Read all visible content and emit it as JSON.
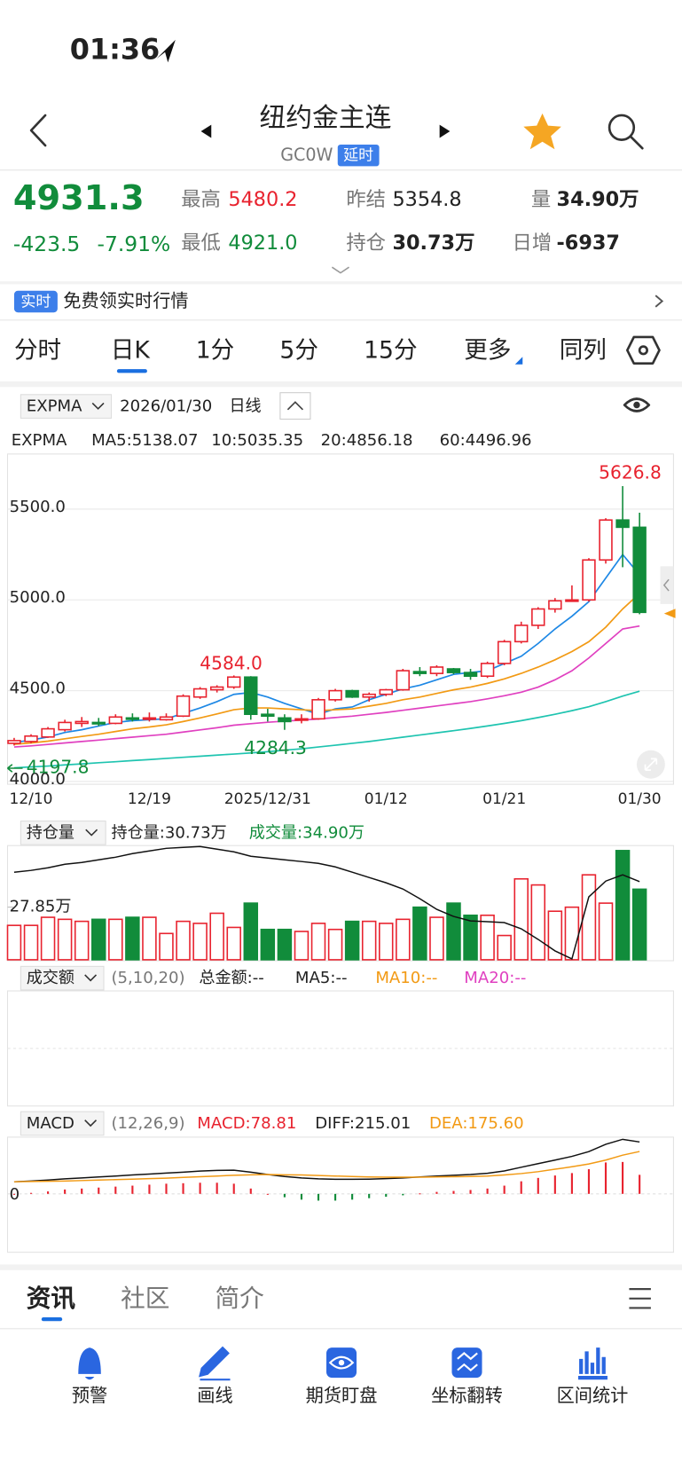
{
  "status": {
    "time": "01:36"
  },
  "header": {
    "title": "纽约金主连",
    "code": "GC0W",
    "badge": "延时"
  },
  "quote": {
    "price": "4931.3",
    "change": "-423.5",
    "change_pct": "-7.91%",
    "high_label": "最高",
    "high": "5480.2",
    "low_label": "最低",
    "low": "4921.0",
    "prev_label": "昨结",
    "prev": "5354.8",
    "oi_label": "持仓",
    "oi": "30.73万",
    "vol_label": "量",
    "vol": "34.90万",
    "inc_label": "日增",
    "inc": "-6937"
  },
  "banner": {
    "badge": "实时",
    "text": "免费领实时行情"
  },
  "tabs": [
    "分时",
    "日K",
    "1分",
    "5分",
    "15分",
    "更多",
    "同列"
  ],
  "toolbar": {
    "indicator": "EXPMA",
    "date": "2026/01/30",
    "period": "日线"
  },
  "legend": {
    "name": "EXPMA",
    "items": [
      {
        "text": "MA5:5138.07",
        "color": "#1e88e5"
      },
      {
        "text": "10:5035.35",
        "color": "#f29a14"
      },
      {
        "text": "20:4856.18",
        "color": "#e040c0"
      },
      {
        "text": "60:4496.96",
        "color": "#1fc4b0"
      }
    ]
  },
  "kline": {
    "up_color": "#e8232f",
    "down_color": "#118c3b",
    "ylim": [
      3995,
      5793
    ],
    "yticks": [
      {
        "value": 4000,
        "label": "4000.0"
      },
      {
        "value": 4500,
        "label": "4500.0"
      },
      {
        "value": 5000,
        "label": "5000.0"
      },
      {
        "value": 5500,
        "label": "5500.0"
      }
    ],
    "categories": [
      null,
      "12/10",
      null,
      null,
      null,
      null,
      null,
      null,
      "12/19",
      null,
      null,
      null,
      null,
      null,
      null,
      "2025/12/31",
      null,
      null,
      null,
      null,
      null,
      null,
      "01/12",
      null,
      null,
      null,
      null,
      null,
      null,
      "01/21",
      null,
      null,
      null,
      null,
      null,
      null,
      null,
      "01/30"
    ],
    "candles": [
      [
        4210,
        4240,
        4197.8,
        4225
      ],
      [
        4220,
        4260,
        4210,
        4250
      ],
      [
        4245,
        4300,
        4240,
        4290
      ],
      [
        4285,
        4340,
        4275,
        4325
      ],
      [
        4320,
        4355,
        4300,
        4330
      ],
      [
        4325,
        4350,
        4305,
        4320
      ],
      [
        4320,
        4370,
        4315,
        4355
      ],
      [
        4350,
        4375,
        4330,
        4345
      ],
      [
        4345,
        4380,
        4330,
        4350
      ],
      [
        4340,
        4375,
        4335,
        4355
      ],
      [
        4360,
        4480,
        4355,
        4470
      ],
      [
        4465,
        4520,
        4455,
        4510
      ],
      [
        4505,
        4530,
        4490,
        4520
      ],
      [
        4520,
        4584,
        4510,
        4575
      ],
      [
        4575,
        4580,
        4340,
        4370
      ],
      [
        4370,
        4400,
        4330,
        4360
      ],
      [
        4350,
        4370,
        4284.3,
        4330
      ],
      [
        4340,
        4370,
        4320,
        4345
      ],
      [
        4345,
        4460,
        4340,
        4450
      ],
      [
        4450,
        4510,
        4440,
        4500
      ],
      [
        4500,
        4505,
        4460,
        4465
      ],
      [
        4465,
        4490,
        4440,
        4480
      ],
      [
        4480,
        4510,
        4470,
        4505
      ],
      [
        4505,
        4620,
        4500,
        4610
      ],
      [
        4605,
        4630,
        4580,
        4595
      ],
      [
        4595,
        4640,
        4580,
        4630
      ],
      [
        4620,
        4625,
        4590,
        4600
      ],
      [
        4600,
        4620,
        4560,
        4580
      ],
      [
        4580,
        4660,
        4570,
        4650
      ],
      [
        4650,
        4780,
        4640,
        4770
      ],
      [
        4770,
        4880,
        4760,
        4860
      ],
      [
        4860,
        4960,
        4840,
        4950
      ],
      [
        4950,
        5010,
        4930,
        4995
      ],
      [
        5000,
        5080,
        4990,
        5000
      ],
      [
        5000,
        5230,
        4990,
        5220
      ],
      [
        5220,
        5450,
        5200,
        5440
      ],
      [
        5440,
        5626.8,
        5180,
        5400
      ],
      [
        5400,
        5480.2,
        4921,
        4931.3
      ]
    ],
    "lines": [
      {
        "color": "#1e88e5",
        "values": [
          4215,
          4228,
          4245,
          4270,
          4285,
          4305,
          4325,
          4335,
          4340,
          4345,
          4375,
          4405,
          4440,
          4480,
          4490,
          4465,
          4430,
          4400,
          4370,
          4400,
          4410,
          4450,
          4480,
          4510,
          4530,
          4560,
          4590,
          4600,
          4610,
          4650,
          4690,
          4760,
          4840,
          4910,
          4990,
          5120,
          5250,
          5138.07
        ]
      },
      {
        "color": "#f29a14",
        "values": [
          4205,
          4212,
          4222,
          4235,
          4248,
          4260,
          4275,
          4290,
          4300,
          4312,
          4330,
          4350,
          4372,
          4395,
          4405,
          4405,
          4400,
          4395,
          4390,
          4395,
          4400,
          4415,
          4430,
          4450,
          4465,
          4485,
          4505,
          4520,
          4540,
          4565,
          4595,
          4630,
          4670,
          4715,
          4770,
          4850,
          4950,
          5035.35
        ]
      },
      {
        "color": "#e040c0",
        "values": [
          4190,
          4196,
          4204,
          4212,
          4220,
          4228,
          4236,
          4244,
          4252,
          4260,
          4272,
          4284,
          4296,
          4310,
          4318,
          4326,
          4332,
          4338,
          4344,
          4352,
          4360,
          4370,
          4380,
          4392,
          4404,
          4416,
          4428,
          4440,
          4455,
          4472,
          4492,
          4520,
          4560,
          4610,
          4680,
          4760,
          4840,
          4856.18
        ]
      },
      {
        "color": "#1fc4b0",
        "values": [
          4075,
          4080,
          4085,
          4091,
          4097,
          4103,
          4109,
          4115,
          4121,
          4127,
          4133,
          4139,
          4145,
          4151,
          4157,
          4164,
          4172,
          4180,
          4190,
          4200,
          4210,
          4220,
          4232,
          4244,
          4256,
          4268,
          4280,
          4292,
          4306,
          4320,
          4335,
          4352,
          4370,
          4390,
          4412,
          4440,
          4470,
          4496.96
        ]
      }
    ],
    "annotations": {
      "high": "5626.8",
      "left_high": "4584.0",
      "left_low": "4284.3",
      "first_low": "4197.8"
    }
  },
  "oi_panel": {
    "indicator": "持仓量",
    "oi_text": "持仓量:30.73万",
    "vol_text": "成交量:34.90万",
    "volume_ylim": [
      0,
      56
    ],
    "volume": [
      17,
      17,
      21,
      20,
      19,
      20,
      20,
      21,
      21,
      13,
      19,
      18,
      23,
      16,
      28,
      15,
      15,
      14,
      18,
      15,
      19,
      19,
      18,
      20,
      26,
      21,
      28,
      22,
      22,
      12,
      40,
      37,
      24,
      26,
      42,
      28,
      54,
      34.9
    ],
    "oi_ylim": [
      21.9,
      34.7
    ],
    "oi_ticks": [
      {
        "value": 27.85,
        "label": "27.85万"
      }
    ],
    "oi": [
      31.8,
      32.0,
      32.3,
      32.7,
      32.9,
      33.2,
      33.5,
      33.9,
      34.2,
      34.5,
      34.6,
      34.7,
      34.4,
      34.1,
      33.6,
      33.4,
      33.2,
      33.0,
      32.8,
      32.4,
      31.8,
      31.2,
      30.6,
      29.9,
      28.8,
      27.6,
      26.8,
      26.3,
      26.2,
      26.1,
      25.4,
      24.2,
      22.9,
      22.0,
      29.0,
      30.8,
      31.5,
      30.73
    ]
  },
  "amount_panel": {
    "indicator": "成交额",
    "params": "(5,10,20)",
    "items": [
      "总金额:--",
      "MA5:--",
      "MA10:--",
      "MA20:--"
    ]
  },
  "macd_panel": {
    "indicator": "MACD",
    "params": "(12,26,9)",
    "macd_text": "MACD:78.81",
    "diff_text": "DIFF:215.01",
    "dea_text": "DEA:175.60",
    "ylim": [
      -234,
      227
    ],
    "yticks": [
      0
    ],
    "hist": [
      0,
      4,
      10,
      18,
      22,
      26,
      30,
      34,
      38,
      42,
      44,
      46,
      46,
      42,
      22,
      0,
      -14,
      -24,
      -28,
      -28,
      -24,
      -18,
      -12,
      -6,
      2,
      8,
      12,
      16,
      22,
      34,
      52,
      66,
      76,
      86,
      102,
      130,
      132,
      78.81
    ],
    "diff": [
      50,
      53,
      57,
      62,
      66,
      70,
      74,
      78,
      82,
      86,
      90,
      94,
      97,
      98,
      90,
      80,
      72,
      66,
      62,
      60,
      60,
      61,
      63,
      66,
      70,
      74,
      77,
      80,
      85,
      95,
      110,
      125,
      140,
      155,
      175,
      205,
      226,
      215.01
    ],
    "dea": [
      50,
      51,
      52,
      53,
      55,
      57,
      59,
      61,
      63,
      65,
      68,
      71,
      74,
      77,
      79,
      80,
      79,
      78,
      76,
      74,
      72,
      70,
      69,
      69,
      69,
      70,
      71,
      72,
      74,
      78,
      84,
      92,
      102,
      112,
      124,
      140,
      160,
      175.6
    ]
  },
  "bottom_tabs": [
    "资讯",
    "社区",
    "简介"
  ],
  "nav": [
    "预警",
    "画线",
    "期货盯盘",
    "坐标翻转",
    "区间统计"
  ]
}
